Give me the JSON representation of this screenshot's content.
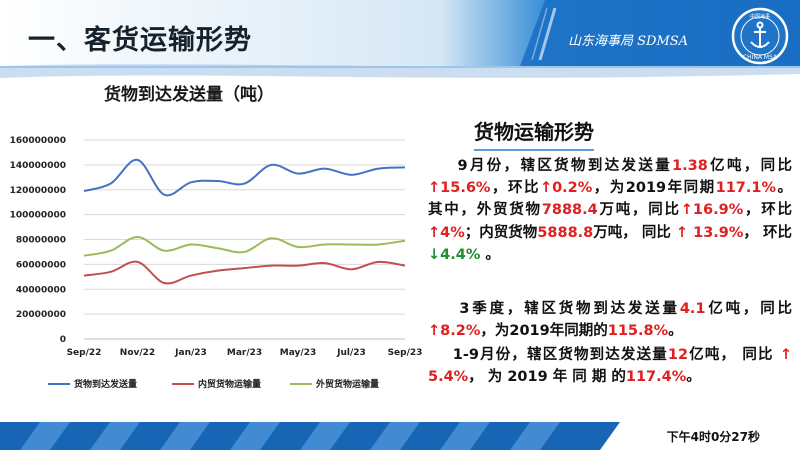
{
  "header": {
    "title": "一、客货运输形势",
    "brand": "山东海事局  SDMSA",
    "logo_text": "CHINA MSA",
    "logo_cn": "中国海事"
  },
  "chart_title": "货物到达发送量（吨）",
  "chart_data": {
    "type": "line",
    "categories": [
      "Sep/22",
      "Oct/22",
      "Nov/22",
      "Dec/22",
      "Jan/23",
      "Feb/23",
      "Mar/23",
      "Apr/23",
      "May/23",
      "Jun/23",
      "Jul/23",
      "Aug/23",
      "Sep/23"
    ],
    "tick_labels": [
      "Sep/22",
      "Nov/22",
      "Jan/23",
      "Mar/23",
      "May/23",
      "Jul/23",
      "Sep/23"
    ],
    "ylim": [
      0,
      160000000
    ],
    "yticks": [
      "0",
      "20000000",
      "40000000",
      "60000000",
      "80000000",
      "100000000",
      "120000000",
      "140000000",
      "160000000"
    ],
    "series": [
      {
        "name": "货物到达发送量",
        "color": "#4472c4",
        "values": [
          119000000,
          125000000,
          144000000,
          116000000,
          126000000,
          127000000,
          125000000,
          140000000,
          133000000,
          137000000,
          132000000,
          137000000,
          138000000
        ]
      },
      {
        "name": "内贸货物运输量",
        "color": "#c0504d",
        "values": [
          51000000,
          54000000,
          62000000,
          45000000,
          51000000,
          55000000,
          57000000,
          59000000,
          59000000,
          61000000,
          56000000,
          62000000,
          59000000
        ]
      },
      {
        "name": "外贸货物运输量",
        "color": "#9bbb59",
        "values": [
          67000000,
          71000000,
          82000000,
          71000000,
          76000000,
          73000000,
          70000000,
          81000000,
          74000000,
          76000000,
          76000000,
          76000000,
          79000000
        ]
      }
    ],
    "grid": true,
    "legend": "bottom"
  },
  "section_title": "货物运输形势",
  "paragraphs": {
    "p1": {
      "s1": "    9月份，辖区货物到达发送量",
      "v1": "1.38",
      "s2": "亿吨，同比",
      "v2": "↑15.6%",
      "s3": "，环比",
      "v3": "↑0.2%",
      "s4": "，为2019年同期",
      "v4": "117.1%",
      "s5": "。 其中，外贸货物",
      "v5": "7888.4",
      "s6": "万吨，同比",
      "v6": "↑16.9%",
      "s7": "，环比",
      "v7": "↑4%",
      "s8": "；内贸货物",
      "v8": "5888.8",
      "s9": "万吨， 同比 ",
      "v9": "↑ 13.9%",
      "s10": "， 环比 ",
      "v10": "↓4.4%",
      "s11": " 。"
    },
    "p2": {
      "s1": "    3季度，辖区货物到达发送量",
      "v1": "4.1",
      "s2": "亿吨，同比",
      "v2": "↑8.2%",
      "s3": "，为2019年同期的",
      "v3": "115.8%",
      "s4": "。"
    },
    "p3": {
      "s1": "    1-9月份，辖区货物到达发送量",
      "v1": "12",
      "s2": "亿吨， 同比 ",
      "v2": "↑ 5.4%",
      "s3": "， 为 2019 年 同 期 的",
      "v3": "117.4%",
      "s4": "。"
    }
  },
  "timestamp": "下午4时0分27秒"
}
